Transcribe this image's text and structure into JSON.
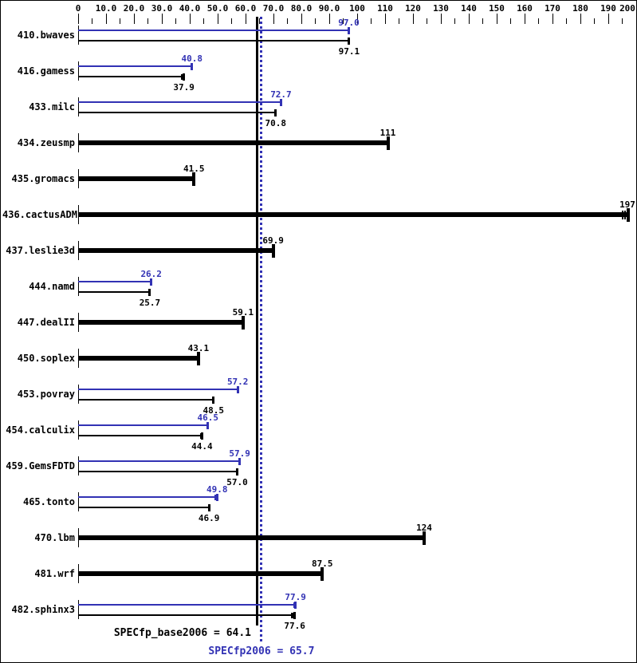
{
  "chart_data": {
    "type": "bar",
    "orientation": "horizontal",
    "title": "",
    "xlabel": "",
    "ylabel": "",
    "xlim": [
      0,
      200
    ],
    "x_major_tick_step": 10,
    "x_minor_tick_step": 5,
    "x_tick_labels": [
      "0",
      "10.0",
      "20.0",
      "30.0",
      "40.0",
      "50.0",
      "60.0",
      "70.0",
      "80.0",
      "90.0",
      "100",
      "110",
      "120",
      "130",
      "140",
      "150",
      "160",
      "170",
      "180",
      "190",
      "200"
    ],
    "grid": false,
    "legend": {
      "peak_color": "#3232b4",
      "base_color": "#000000"
    },
    "benchmarks": [
      {
        "name": "410.bwaves",
        "peak": 97.0,
        "peak_label": "97.0",
        "base": 97.1,
        "base_label": "97.1"
      },
      {
        "name": "416.gamess",
        "peak": 40.8,
        "peak_label": "40.8",
        "base": 37.9,
        "base_label": "37.9",
        "base_run_marks": [
          37.2
        ]
      },
      {
        "name": "433.milc",
        "peak": 72.7,
        "peak_label": "72.7",
        "base": 70.8,
        "base_label": "70.8"
      },
      {
        "name": "434.zeusmp",
        "base": 111,
        "base_label": "111"
      },
      {
        "name": "435.gromacs",
        "base": 41.5,
        "base_label": "41.5"
      },
      {
        "name": "436.cactusADM",
        "base": 197,
        "base_label": "197",
        "base_run_marks": [
          195.2,
          196.1
        ]
      },
      {
        "name": "437.leslie3d",
        "base": 69.9,
        "base_label": "69.9"
      },
      {
        "name": "444.namd",
        "peak": 26.2,
        "peak_label": "26.2",
        "base": 25.7,
        "base_label": "25.7"
      },
      {
        "name": "447.dealII",
        "base": 59.1,
        "base_label": "59.1"
      },
      {
        "name": "450.soplex",
        "base": 43.1,
        "base_label": "43.1"
      },
      {
        "name": "453.povray",
        "peak": 57.2,
        "peak_label": "57.2",
        "base": 48.5,
        "base_label": "48.5"
      },
      {
        "name": "454.calculix",
        "peak": 46.5,
        "peak_label": "46.5",
        "base": 44.4,
        "base_label": "44.4",
        "base_run_marks": [
          44.0
        ]
      },
      {
        "name": "459.GemsFDTD",
        "peak": 57.9,
        "peak_label": "57.9",
        "base": 57.0,
        "base_label": "57.0"
      },
      {
        "name": "465.tonto",
        "peak": 49.8,
        "peak_label": "49.8",
        "base": 46.9,
        "base_label": "46.9",
        "peak_run_marks": [
          49.2
        ]
      },
      {
        "name": "470.lbm",
        "base": 124,
        "base_label": "124"
      },
      {
        "name": "481.wrf",
        "base": 87.5,
        "base_label": "87.5"
      },
      {
        "name": "482.sphinx3",
        "peak": 77.9,
        "peak_label": "77.9",
        "base": 77.6,
        "base_label": "77.6",
        "peak_run_marks": [
          77.3
        ],
        "base_run_marks": [
          76.6,
          77.1
        ]
      }
    ],
    "reference_lines": [
      {
        "name": "base_mean",
        "label": "SPECfp_base2006 = 64.1",
        "value": 64.1,
        "color": "#000000",
        "style": "solid"
      },
      {
        "name": "peak_mean",
        "label": "SPECfp2006 = 65.7",
        "value": 65.7,
        "color": "#3232b4",
        "style": "dotted"
      }
    ]
  }
}
